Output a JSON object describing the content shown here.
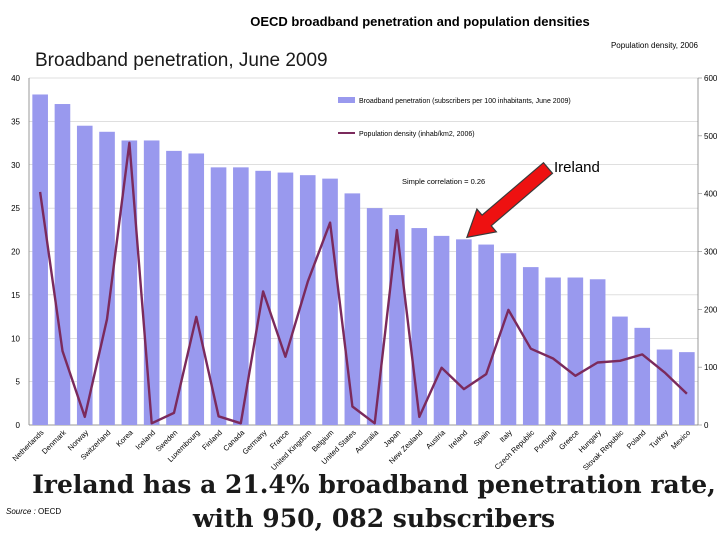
{
  "chart_data": {
    "type": "bar",
    "title": "OECD broadband penetration and population densities",
    "subtitle": "Broadband penetration, June 2009",
    "y2label": "Population density, 2006",
    "categories": [
      "Netherlands",
      "Denmark",
      "Norway",
      "Switzerland",
      "Korea",
      "Iceland",
      "Sweden",
      "Luxembourg",
      "Finland",
      "Canada",
      "Germany",
      "France",
      "United Kingdom",
      "Belgium",
      "United States",
      "Australia",
      "Japan",
      "New Zealand",
      "Austria",
      "Ireland",
      "Spain",
      "Italy",
      "Czech Republic",
      "Portugal",
      "Greece",
      "Hungary",
      "Slovak Republic",
      "Poland",
      "Turkey",
      "Mexico"
    ],
    "ylim": [
      0,
      40
    ],
    "yticks": [
      0,
      5,
      10,
      15,
      20,
      25,
      30,
      35,
      40
    ],
    "y2lim": [
      0,
      600
    ],
    "y2ticks": [
      0,
      100,
      200,
      300,
      400,
      500,
      600
    ],
    "series": [
      {
        "name": "Broadband penetration (subscribers per 100 inhabitants, June 2009)",
        "type": "bar",
        "axis": "left",
        "color": "#9999ee",
        "values": [
          38.1,
          37.0,
          34.5,
          33.8,
          32.8,
          32.8,
          31.6,
          31.3,
          29.7,
          29.7,
          29.3,
          29.1,
          28.8,
          28.4,
          26.7,
          25.0,
          24.2,
          22.7,
          21.8,
          21.4,
          20.8,
          19.8,
          18.2,
          17.0,
          17.0,
          16.8,
          12.5,
          11.2,
          8.7,
          8.4
        ]
      },
      {
        "name": "Population density (inhab/km2, 2006)",
        "type": "line",
        "axis": "right",
        "color": "#7b2a5c",
        "values": [
          403,
          128,
          14,
          183,
          488,
          3,
          21,
          187,
          15,
          3,
          231,
          118,
          248,
          350,
          32,
          3,
          337,
          14,
          99,
          62,
          88,
          199,
          132,
          115,
          85,
          108,
          111,
          122,
          91,
          54
        ]
      }
    ],
    "annotations": {
      "correlation": "Simple correlation = 0.26",
      "arrow_label": "Ireland",
      "arrow_target": "Ireland",
      "arrow_color": "#ee1111"
    },
    "legend_position": "top-right"
  },
  "caption": "Ireland has a 21.4% broadband penetration rate, with 950, 082 subscribers",
  "source": {
    "label": "Source :",
    "value": " OECD"
  }
}
